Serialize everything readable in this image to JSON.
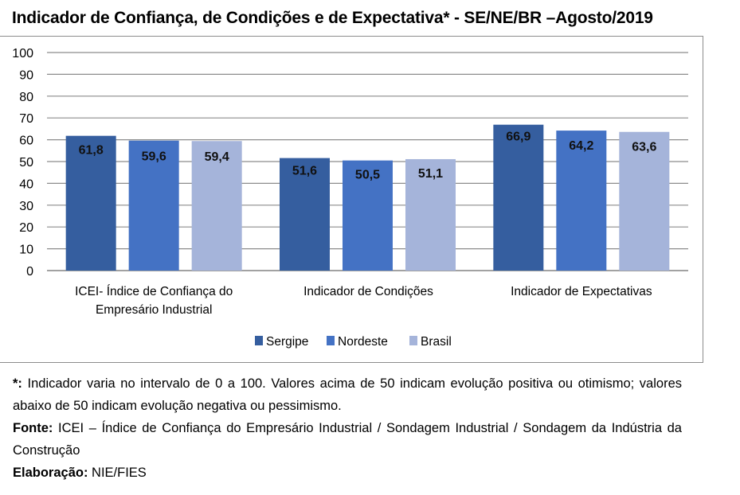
{
  "chart_data": {
    "type": "bar",
    "title": "Indicador de Confiança, de Condições e de Expectativa* - SE/NE/BR –Agosto/2019",
    "categories": [
      [
        "ICEI- Índice de Confiança do",
        "Empresário Industrial"
      ],
      [
        "Indicador de Condições"
      ],
      [
        "Indicador de Expectativas"
      ]
    ],
    "series": [
      {
        "name": "Sergipe",
        "color": "#355E9F",
        "values": [
          61.8,
          51.6,
          66.9
        ],
        "labels": [
          "61,8",
          "51,6",
          "66,9"
        ]
      },
      {
        "name": "Nordeste",
        "color": "#4472C4",
        "values": [
          59.6,
          50.5,
          64.2
        ],
        "labels": [
          "59,6",
          "50,5",
          "64,2"
        ]
      },
      {
        "name": "Brasil",
        "color": "#A5B4DA",
        "values": [
          59.4,
          51.1,
          63.6
        ],
        "labels": [
          "59,4",
          "51,1",
          "63,6"
        ]
      }
    ],
    "ylim": [
      0,
      100
    ],
    "yticks": [
      0,
      10,
      20,
      30,
      40,
      50,
      60,
      70,
      80,
      90,
      100
    ],
    "xlabel": "",
    "ylabel": "",
    "grid": true,
    "legend": "bottom-center"
  },
  "notes": {
    "asterisk_label": "*:",
    "asterisk_text": "  Indicador varia no intervalo de 0 a 100. Valores acima de 50 indicam evolução positiva ou otimismo; valores abaixo de 50 indicam evolução negativa ou pessimismo.",
    "source_label": "Fonte:",
    "source_text": " ICEI – Índice de Confiança do Empresário Industrial / Sondagem Industrial / Sondagem da Indústria da Construção",
    "credit_label": "Elaboração:",
    "credit_text": " NIE/FIES"
  }
}
